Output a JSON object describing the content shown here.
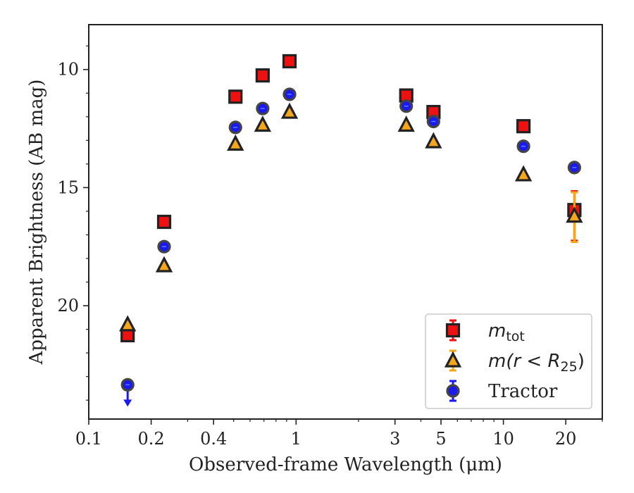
{
  "chart_data": {
    "type": "scatter",
    "title": "",
    "xlabel": "Observed-frame Wavelength (μm)",
    "ylabel": "Apparent Brightness (AB mag)",
    "xscale": "log",
    "xlim": [
      0.1,
      30
    ],
    "ylim": [
      24.8,
      8.1
    ],
    "y_inverted": true,
    "grid": false,
    "legend_position": "lower-right",
    "x_ticks": [
      0.1,
      0.2,
      0.4,
      1,
      3,
      5,
      10,
      20
    ],
    "x_tick_labels": [
      "0.1",
      "0.2",
      "0.4",
      "1",
      "3",
      "5",
      "10",
      "20"
    ],
    "y_ticks": [
      10,
      15,
      20
    ],
    "y_tick_labels": [
      "10",
      "15",
      "20"
    ],
    "series": [
      {
        "name": "m_tot",
        "legend_label_main": "m",
        "legend_label_sub": "tot",
        "marker": "square",
        "color": "#ee1111",
        "edge_color": "#222222",
        "points": [
          {
            "x": 0.154,
            "y": 21.25
          },
          {
            "x": 0.231,
            "y": 16.45
          },
          {
            "x": 0.51,
            "y": 11.15
          },
          {
            "x": 0.69,
            "y": 10.25
          },
          {
            "x": 0.93,
            "y": 9.65
          },
          {
            "x": 3.4,
            "y": 11.1
          },
          {
            "x": 4.6,
            "y": 11.8
          },
          {
            "x": 12.5,
            "y": 12.4
          },
          {
            "x": 22.0,
            "y": 15.95,
            "err_low": 0.8,
            "err_high": 1.3
          }
        ]
      },
      {
        "name": "m(r<R25)",
        "legend_label_main": "m(r < R",
        "legend_label_sub": "25",
        "legend_label_end": ")",
        "marker": "triangle",
        "color": "#f5a61a",
        "edge_color": "#222222",
        "points": [
          {
            "x": 0.154,
            "y": 20.8
          },
          {
            "x": 0.231,
            "y": 18.3
          },
          {
            "x": 0.51,
            "y": 13.15
          },
          {
            "x": 0.69,
            "y": 12.35
          },
          {
            "x": 0.93,
            "y": 11.8
          },
          {
            "x": 3.4,
            "y": 12.35
          },
          {
            "x": 4.6,
            "y": 13.05
          },
          {
            "x": 12.5,
            "y": 14.45
          },
          {
            "x": 22.0,
            "y": 16.2,
            "err_low": 1.0,
            "err_high": 1.1,
            "err_color": "#f5a61a"
          }
        ]
      },
      {
        "name": "Tractor",
        "marker": "circle",
        "color": "#1a1aee",
        "edge_color": "#444444",
        "points": [
          {
            "x": 0.154,
            "y": 23.35,
            "upper_limit": true
          },
          {
            "x": 0.231,
            "y": 17.5
          },
          {
            "x": 0.51,
            "y": 12.45
          },
          {
            "x": 0.69,
            "y": 11.65
          },
          {
            "x": 0.93,
            "y": 11.05
          },
          {
            "x": 3.4,
            "y": 11.55
          },
          {
            "x": 4.6,
            "y": 12.2
          },
          {
            "x": 12.5,
            "y": 13.25
          },
          {
            "x": 22.0,
            "y": 14.15
          }
        ]
      }
    ]
  }
}
